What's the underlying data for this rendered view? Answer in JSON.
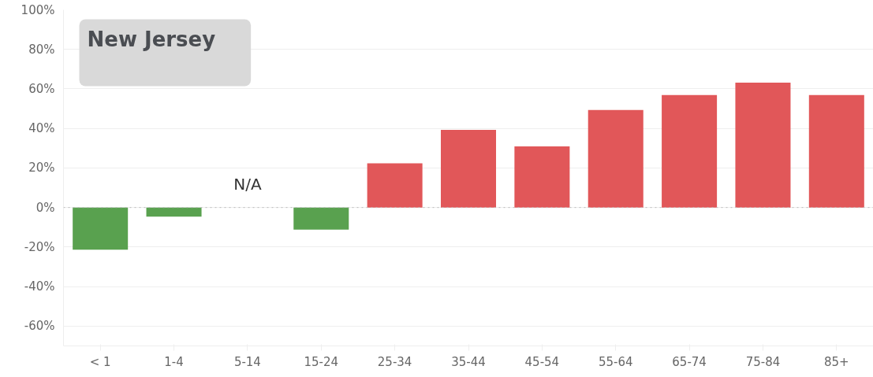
{
  "chart_data": {
    "type": "bar",
    "title": "New Jersey",
    "categories": [
      "< 1",
      "1-4",
      "5-14",
      "15-24",
      "25-34",
      "35-44",
      "45-54",
      "55-64",
      "65-74",
      "75-84",
      "85+"
    ],
    "values": [
      -21.3,
      -4.6,
      null,
      -11.2,
      22.4,
      39.3,
      30.9,
      49.3,
      56.9,
      63.2,
      56.9
    ],
    "colors": [
      "#59a14f",
      "#59a14f",
      null,
      "#59a14f",
      "#e15759",
      "#e15759",
      "#e15759",
      "#e15759",
      "#e15759",
      "#e15759",
      "#e15759"
    ],
    "ylim": [
      -70,
      100
    ],
    "yticks": [
      {
        "value": -60,
        "label": "-60%"
      },
      {
        "value": -40,
        "label": "-40%"
      },
      {
        "value": -20,
        "label": "-20%"
      },
      {
        "value": 0,
        "label": "0%"
      },
      {
        "value": 20,
        "label": "20%"
      },
      {
        "value": 40,
        "label": "40%"
      },
      {
        "value": 60,
        "label": "60%"
      },
      {
        "value": 80,
        "label": "80%"
      },
      {
        "value": 100,
        "label": "100%"
      }
    ],
    "annotations": [
      "N/A"
    ],
    "ref_lines": [
      {
        "axis": "y",
        "value": 0,
        "label": null,
        "color": "#bbbbbb",
        "line_style": "dotted"
      }
    ],
    "grid": "y"
  }
}
